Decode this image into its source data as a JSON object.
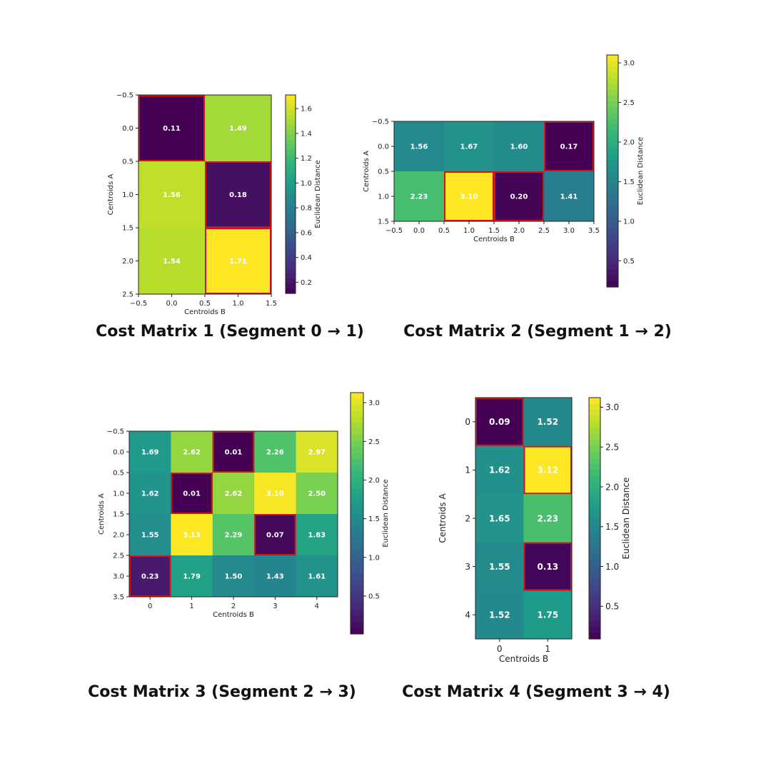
{
  "colors": {
    "highlight": "#d0161b",
    "cell_text": "#ffffff",
    "axis": "#222222",
    "colormap": "viridis"
  },
  "chart_data": [
    {
      "type": "heatmap",
      "caption": "Cost Matrix 1 (Segment 0 → 1)",
      "xlabel": "Centroids B",
      "ylabel": "Centroids A",
      "colorbar_label": "Euclidean Distance",
      "x_ticks": [
        "−0.5",
        "0.0",
        "0.5",
        "1.0",
        "1.5"
      ],
      "y_ticks": [
        "−0.5",
        "0.0",
        "0.5",
        "1.0",
        "1.5",
        "2.0",
        "2.5"
      ],
      "colorbar_ticks": [
        "0.2",
        "0.4",
        "0.6",
        "0.8",
        "1.0",
        "1.2",
        "1.4",
        "1.6"
      ],
      "colorbar_tick_values": [
        0.2,
        0.4,
        0.6,
        0.8,
        1.0,
        1.2,
        1.4,
        1.6
      ],
      "vmin": 0.11,
      "vmax": 1.71,
      "matrix": [
        [
          0.11,
          1.49
        ],
        [
          1.56,
          0.18
        ],
        [
          1.54,
          1.71
        ]
      ],
      "labels": [
        [
          "0.11",
          "1.49"
        ],
        [
          "1.56",
          "0.18"
        ],
        [
          "1.54",
          "1.71"
        ]
      ],
      "highlighted": [
        [
          0,
          0
        ],
        [
          1,
          1
        ],
        [
          2,
          1
        ]
      ]
    },
    {
      "type": "heatmap",
      "caption": "Cost Matrix 2 (Segment 1 → 2)",
      "xlabel": "Centroids B",
      "ylabel": "Centroids A",
      "colorbar_label": "Euclidean Distance",
      "x_ticks": [
        "−0.5",
        "0.0",
        "0.5",
        "1.0",
        "1.5",
        "2.0",
        "2.5",
        "3.0",
        "3.5"
      ],
      "y_ticks": [
        "−0.5",
        "0.0",
        "0.5",
        "1.0",
        "1.5"
      ],
      "colorbar_ticks": [
        "0.5",
        "1.0",
        "1.5",
        "2.0",
        "2.5",
        "3.0"
      ],
      "colorbar_tick_values": [
        0.5,
        1.0,
        1.5,
        2.0,
        2.5,
        3.0
      ],
      "vmin": 0.17,
      "vmax": 3.1,
      "matrix": [
        [
          1.56,
          1.67,
          1.6,
          0.17
        ],
        [
          2.23,
          3.1,
          0.2,
          1.41
        ]
      ],
      "labels": [
        [
          "1.56",
          "1.67",
          "1.60",
          "0.17"
        ],
        [
          "2.23",
          "3.10",
          "0.20",
          "1.41"
        ]
      ],
      "highlighted": [
        [
          0,
          3
        ],
        [
          1,
          1
        ],
        [
          1,
          2
        ]
      ]
    },
    {
      "type": "heatmap",
      "caption": "Cost Matrix 3 (Segment 2 → 3)",
      "xlabel": "Centroids B",
      "ylabel": "Centroids A",
      "colorbar_label": "Euclidean Distance",
      "x_ticks": [
        "0",
        "1",
        "2",
        "3",
        "4"
      ],
      "y_ticks": [
        "−0.5",
        "0.0",
        "0.5",
        "1.0",
        "1.5",
        "2.0",
        "2.5",
        "3.0",
        "3.5"
      ],
      "colorbar_ticks": [
        "0.5",
        "1.0",
        "1.5",
        "2.0",
        "2.5",
        "3.0"
      ],
      "colorbar_tick_values": [
        0.5,
        1.0,
        1.5,
        2.0,
        2.5,
        3.0
      ],
      "vmin": 0.01,
      "vmax": 3.13,
      "matrix": [
        [
          1.69,
          2.62,
          0.01,
          2.26,
          2.97
        ],
        [
          1.62,
          0.01,
          2.62,
          3.1,
          2.5
        ],
        [
          1.55,
          3.13,
          2.29,
          0.07,
          1.83
        ],
        [
          0.23,
          1.79,
          1.5,
          1.43,
          1.61
        ]
      ],
      "labels": [
        [
          "1.69",
          "2.62",
          "0.01",
          "2.26",
          "2.97"
        ],
        [
          "1.62",
          "0.01",
          "2.62",
          "3.10",
          "2.50"
        ],
        [
          "1.55",
          "3.13",
          "2.29",
          "0.07",
          "1.83"
        ],
        [
          "0.23",
          "1.79",
          "1.50",
          "1.43",
          "1.61"
        ]
      ],
      "highlighted": [
        [
          0,
          2
        ],
        [
          1,
          1
        ],
        [
          2,
          3
        ],
        [
          3,
          0
        ]
      ]
    },
    {
      "type": "heatmap",
      "caption": "Cost Matrix 4 (Segment 3 → 4)",
      "xlabel": "Centroids B",
      "ylabel": "Centroids A",
      "colorbar_label": "Euclidean Distance",
      "x_ticks": [
        "0",
        "1"
      ],
      "y_ticks": [
        "0",
        "1",
        "2",
        "3",
        "4"
      ],
      "colorbar_ticks": [
        "0.5",
        "1.0",
        "1.5",
        "2.0",
        "2.5",
        "3.0"
      ],
      "colorbar_tick_values": [
        0.5,
        1.0,
        1.5,
        2.0,
        2.5,
        3.0
      ],
      "vmin": 0.09,
      "vmax": 3.12,
      "matrix": [
        [
          0.09,
          1.52
        ],
        [
          1.62,
          3.12
        ],
        [
          1.65,
          2.23
        ],
        [
          1.55,
          0.13
        ],
        [
          1.52,
          1.75
        ]
      ],
      "labels": [
        [
          "0.09",
          "1.52"
        ],
        [
          "1.62",
          "3.12"
        ],
        [
          "1.65",
          "2.23"
        ],
        [
          "1.55",
          "0.13"
        ],
        [
          "1.52",
          "1.75"
        ]
      ],
      "highlighted": [
        [
          0,
          0
        ],
        [
          1,
          1
        ],
        [
          3,
          1
        ]
      ]
    }
  ]
}
